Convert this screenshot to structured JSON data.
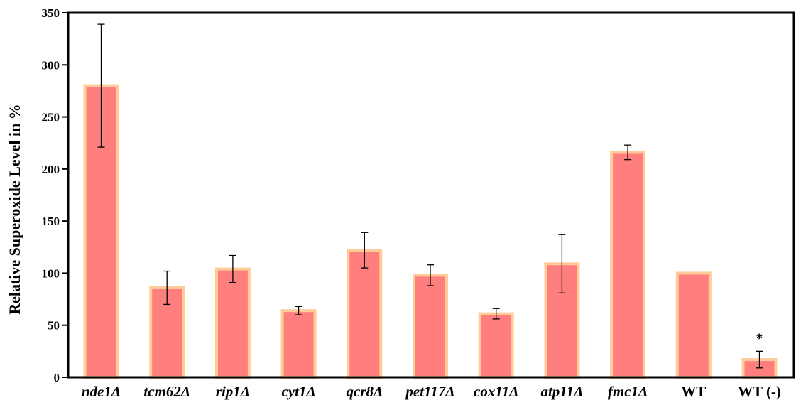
{
  "chart_data": {
    "type": "bar",
    "ylabel": "Relative Superoxide Level in %",
    "ylim": [
      0,
      350
    ],
    "yticks": [
      0,
      50,
      100,
      150,
      200,
      250,
      300,
      350
    ],
    "categories": [
      "nde1Δ",
      "tcm62Δ",
      "rip1Δ",
      "cyt1Δ",
      "qcr8Δ",
      "pet117Δ",
      "cox11Δ",
      "atp11Δ",
      "fmc1Δ",
      "WT",
      "WT (-)"
    ],
    "values": [
      280,
      86,
      104,
      64,
      122,
      98,
      61,
      109,
      216,
      100,
      17
    ],
    "errors": [
      59,
      16,
      13,
      4,
      17,
      10,
      5,
      28,
      7,
      0,
      8
    ],
    "annotations": [
      {
        "category": "WT (-)",
        "text": "*"
      }
    ],
    "grid": false,
    "colors": {
      "bar_fill": "#ff7f7f",
      "bar_edge": "#ffcc99",
      "error_bar": "#000000",
      "axis": "#000000"
    }
  }
}
